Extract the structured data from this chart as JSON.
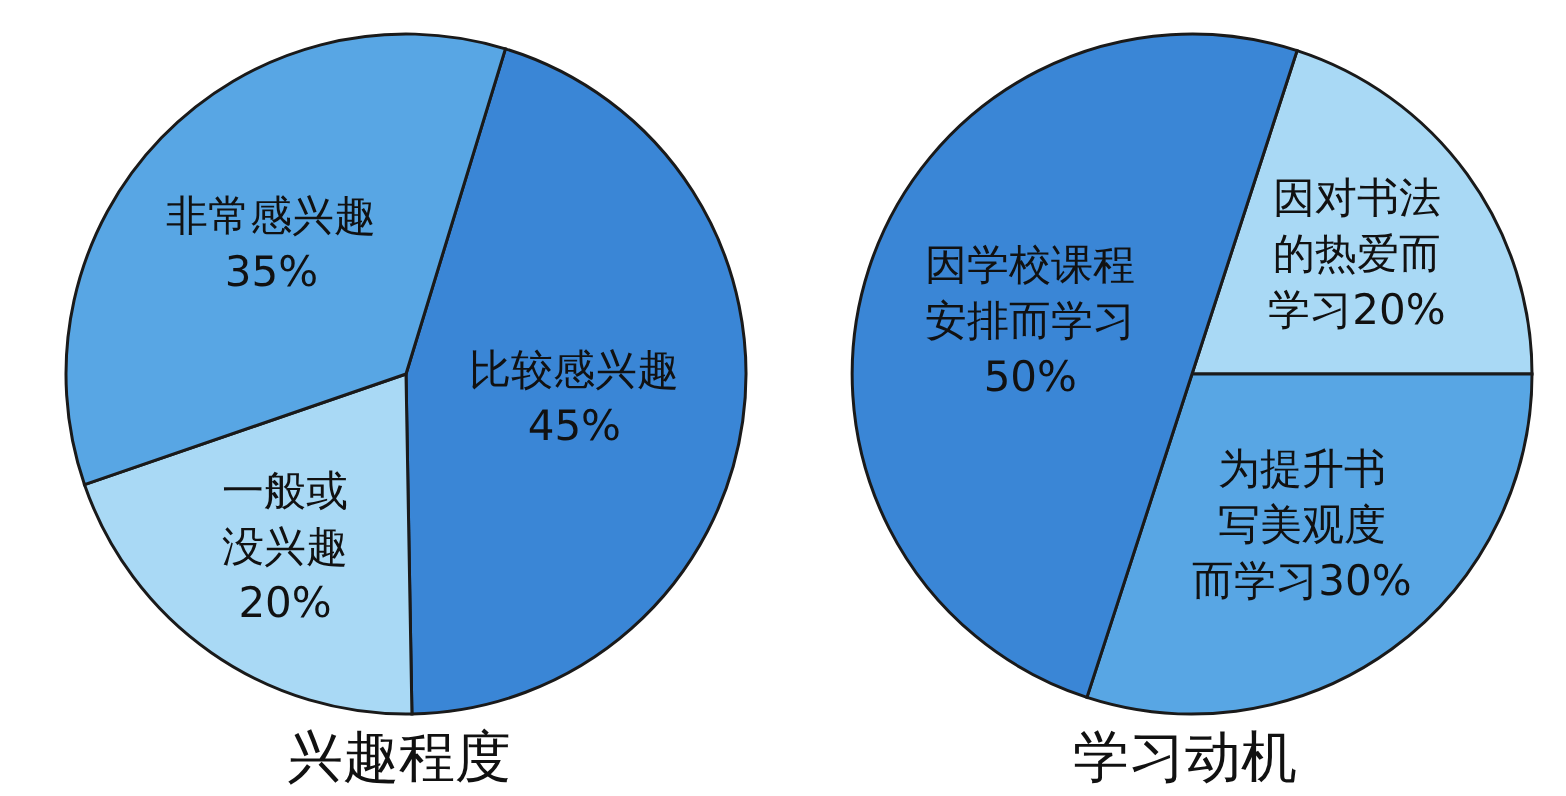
{
  "chart_data": [
    {
      "type": "pie",
      "title": "兴趣程度",
      "categories": [
        "比较感兴趣",
        "一般或没兴趣",
        "非常感兴趣"
      ],
      "values": [
        45,
        20,
        35
      ],
      "value_labels": [
        "45%",
        "20%",
        "35%"
      ],
      "colors": [
        "#3a86d6",
        "#a9d9f5",
        "#58a6e4"
      ]
    },
    {
      "type": "pie",
      "title": "学习动机",
      "categories": [
        "因对书法的热爱而学习",
        "为提升书写美观度而学习",
        "因学校课程安排而学习"
      ],
      "values": [
        20,
        30,
        50
      ],
      "value_labels": [
        "20%",
        "30%",
        "50%"
      ],
      "colors": [
        "#a9d9f5",
        "#58a6e4",
        "#3a86d6"
      ]
    }
  ]
}
